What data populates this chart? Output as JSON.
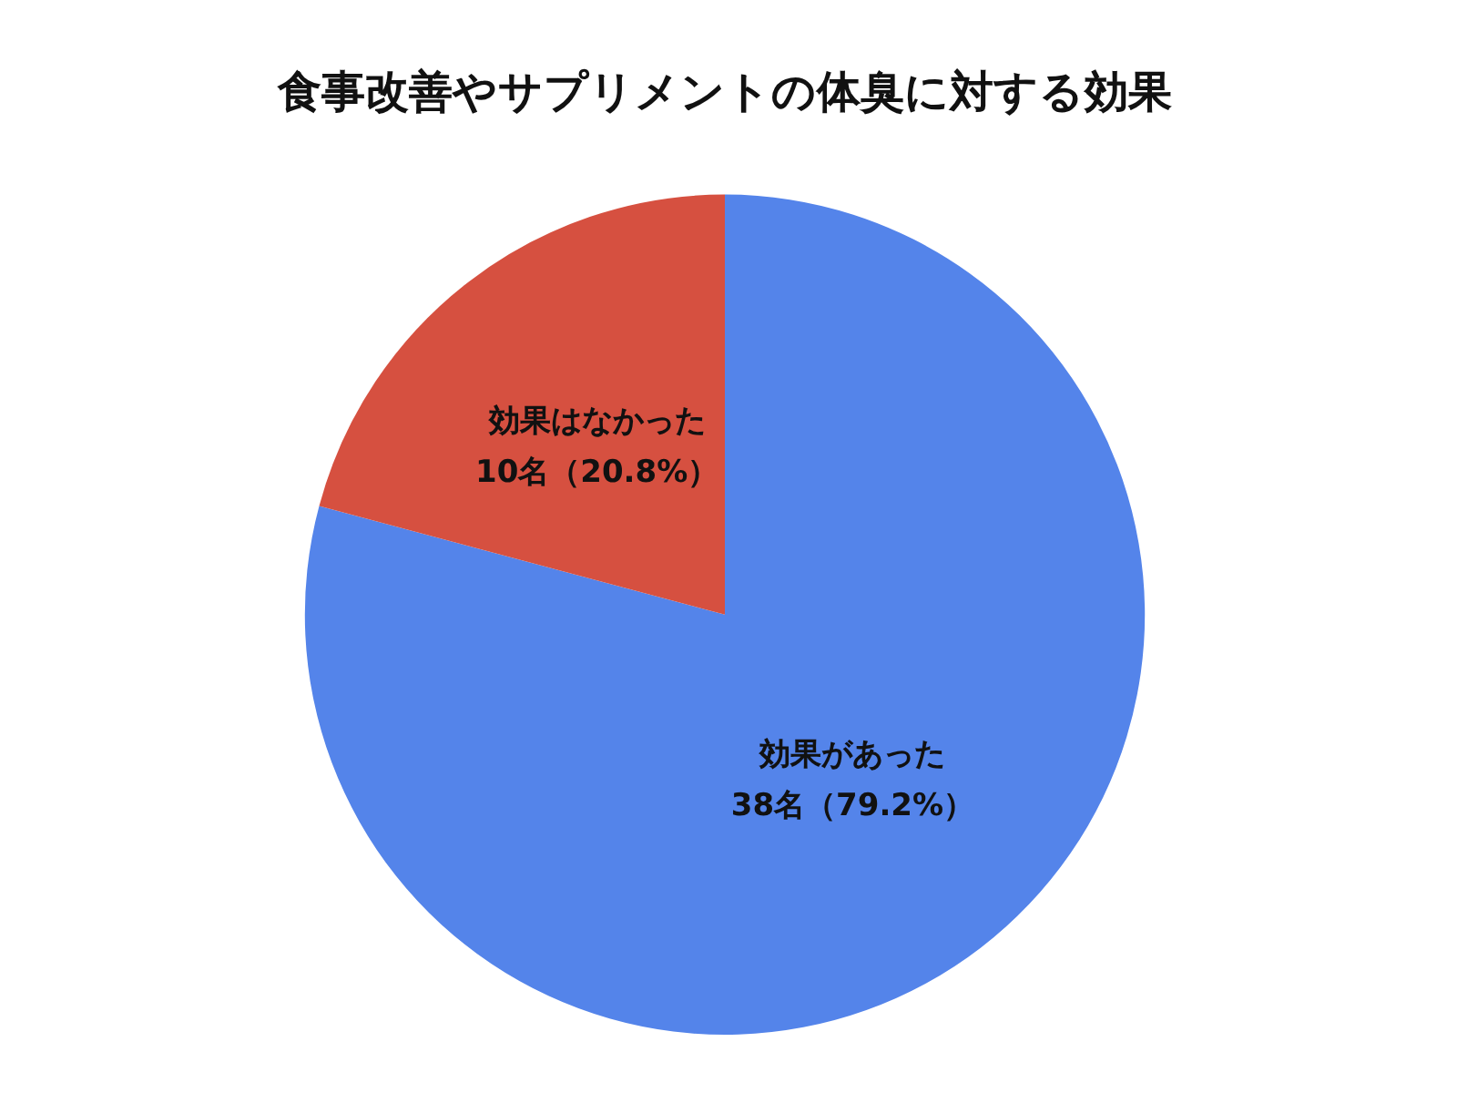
{
  "chart_data": {
    "type": "pie",
    "title": "食事改善やサプリメントの体臭に対する効果",
    "categories": [
      "効果があった",
      "効果はなかった"
    ],
    "values": [
      38,
      10
    ],
    "colors": [
      "#5484ea",
      "#d65040"
    ],
    "value_labels": [
      "38名（79.2%）",
      "10名（20.8%）"
    ]
  }
}
